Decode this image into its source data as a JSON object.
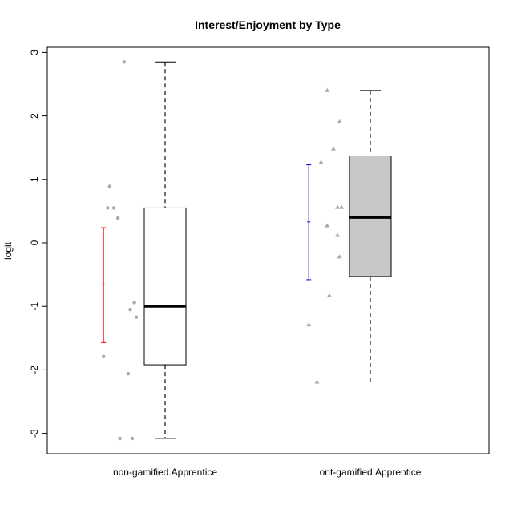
{
  "chart_data": {
    "type": "box",
    "title": "Interest/Enjoyment by Type",
    "xlabel": "",
    "ylabel": "logit",
    "ylim": [
      -3.3,
      3.1
    ],
    "yticks": [
      3,
      2,
      1,
      0,
      -1,
      -2,
      -3
    ],
    "ytick_labels": [
      "3",
      "2",
      "1",
      "0",
      "-1",
      "-2",
      "-3"
    ],
    "categories": [
      "non-gamified.Apprentice",
      "ont-gamified.Apprentice"
    ],
    "boxes": [
      {
        "category": "non-gamified.Apprentice",
        "whisker_low": -3.08,
        "q1": -1.92,
        "median": -1.0,
        "q3": 0.55,
        "whisker_high": 2.85,
        "fill": "#ffffff",
        "points": [
          {
            "x": 0.3,
            "y": 2.85
          },
          {
            "x": 0.23,
            "y": 0.89
          },
          {
            "x": 0.22,
            "y": 0.55
          },
          {
            "x": 0.25,
            "y": 0.55
          },
          {
            "x": 0.27,
            "y": 0.39
          },
          {
            "x": 0.35,
            "y": -0.94
          },
          {
            "x": 0.33,
            "y": -1.05
          },
          {
            "x": 0.36,
            "y": -1.17
          },
          {
            "x": 0.2,
            "y": -1.79
          },
          {
            "x": 0.32,
            "y": -2.06
          },
          {
            "x": 0.28,
            "y": -3.08
          },
          {
            "x": 0.34,
            "y": -3.08
          }
        ],
        "point_shape": "circle",
        "mean": -0.66,
        "ci": [
          -1.57,
          0.24
        ],
        "ci_color": "#ff0000"
      },
      {
        "category": "ont-gamified.Apprentice",
        "whisker_low": -2.19,
        "q1": -0.53,
        "median": 0.4,
        "q3": 1.37,
        "whisker_high": 2.4,
        "fill": "#c8c8c8",
        "points": [
          {
            "x": 1.29,
            "y": 2.4
          },
          {
            "x": 1.35,
            "y": 1.91
          },
          {
            "x": 1.32,
            "y": 1.48
          },
          {
            "x": 1.26,
            "y": 1.27
          },
          {
            "x": 1.34,
            "y": 0.56
          },
          {
            "x": 1.36,
            "y": 0.56
          },
          {
            "x": 1.29,
            "y": 0.27
          },
          {
            "x": 1.34,
            "y": 0.12
          },
          {
            "x": 1.35,
            "y": -0.22
          },
          {
            "x": 1.3,
            "y": -0.83
          },
          {
            "x": 1.2,
            "y": -1.29
          },
          {
            "x": 1.24,
            "y": -2.19
          }
        ],
        "point_shape": "triangle",
        "mean": 0.33,
        "ci": [
          -0.58,
          1.23
        ],
        "ci_color": "#0000cc"
      }
    ],
    "colors": {
      "points": "#a9a9a9",
      "whisker": "#6e6e6e",
      "frame": "#000000"
    }
  }
}
